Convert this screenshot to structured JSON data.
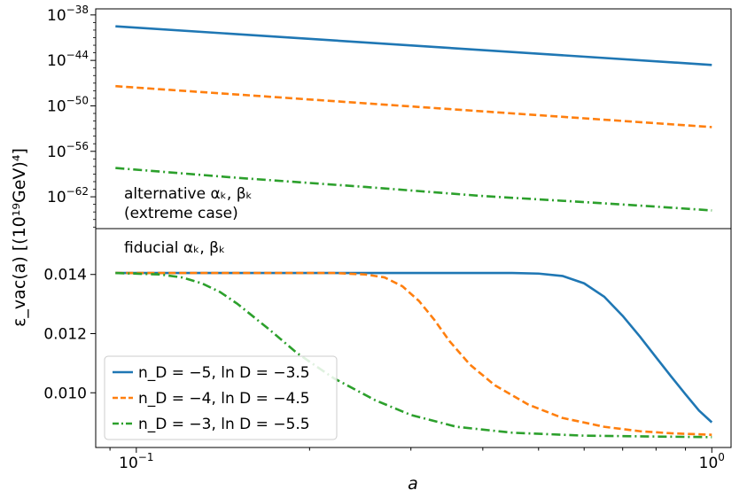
{
  "figure": {
    "ylabel": "ε_vac(a) [(10¹⁹GeV)⁴]",
    "xlabel": "a",
    "x_ticks": [
      {
        "value": 0.1,
        "base": "10",
        "exp": "−1"
      },
      {
        "value": 1.0,
        "base": "10",
        "exp": "0"
      }
    ]
  },
  "chart_data": [
    {
      "type": "line",
      "panel": "top",
      "annotation": [
        "alternative αₖ, βₖ",
        "(extreme case)"
      ],
      "xscale": "log",
      "yscale": "log",
      "xlim": [
        0.085,
        1.08
      ],
      "ylim_log10": [
        -66.2,
        -37.2
      ],
      "y_ticks": [
        {
          "log10": -38,
          "base": "10",
          "exp": "−38"
        },
        {
          "log10": -44,
          "base": "10",
          "exp": "−44"
        },
        {
          "log10": -50,
          "base": "10",
          "exp": "−50"
        },
        {
          "log10": -56,
          "base": "10",
          "exp": "−56"
        },
        {
          "log10": -62,
          "base": "10",
          "exp": "−62"
        }
      ],
      "series": [
        {
          "key": "s1",
          "color": "#1f77b4",
          "dash": "solid",
          "x": [
            0.092,
            1.0
          ],
          "log10_y": [
            -39.5,
            -44.6
          ]
        },
        {
          "key": "s2",
          "color": "#ff7f0e",
          "dash": "dashed",
          "x": [
            0.092,
            1.0
          ],
          "log10_y": [
            -47.4,
            -52.8
          ]
        },
        {
          "key": "s3",
          "color": "#2ca02c",
          "dash": "dashdot",
          "x": [
            0.092,
            0.15,
            0.25,
            0.4,
            0.6,
            0.8,
            1.0
          ],
          "log10_y": [
            -58.2,
            -59.5,
            -60.7,
            -61.9,
            -62.7,
            -63.3,
            -63.8
          ]
        }
      ]
    },
    {
      "type": "line",
      "panel": "bottom",
      "annotation": [
        "fiducial αₖ, βₖ"
      ],
      "xscale": "log",
      "yscale": "linear",
      "xlim": [
        0.085,
        1.08
      ],
      "ylim": [
        0.00815,
        0.01555
      ],
      "y_ticks": [
        "0.010",
        "0.012",
        "0.014"
      ],
      "legend": {
        "placement": "lower left",
        "entries": [
          {
            "key": "s1",
            "label": "n_D = −5,  ln D = −3.5"
          },
          {
            "key": "s2",
            "label": "n_D = −4,  ln D = −4.5"
          },
          {
            "key": "s3",
            "label": "n_D = −3,  ln D = −5.5"
          }
        ]
      },
      "series": [
        {
          "key": "s1",
          "color": "#1f77b4",
          "dash": "solid",
          "x": [
            0.092,
            0.3,
            0.45,
            0.5,
            0.55,
            0.6,
            0.65,
            0.7,
            0.75,
            0.8,
            0.85,
            0.9,
            0.95,
            1.0
          ],
          "y": [
            0.01405,
            0.01405,
            0.01405,
            0.01403,
            0.01395,
            0.0137,
            0.01325,
            0.0126,
            0.0119,
            0.0112,
            0.01055,
            0.00995,
            0.0094,
            0.009
          ]
        },
        {
          "key": "s2",
          "color": "#ff7f0e",
          "dash": "dashed",
          "x": [
            0.092,
            0.22,
            0.25,
            0.27,
            0.29,
            0.31,
            0.33,
            0.35,
            0.38,
            0.42,
            0.48,
            0.55,
            0.65,
            0.75,
            0.85,
            1.0
          ],
          "y": [
            0.01405,
            0.01405,
            0.014,
            0.0139,
            0.0136,
            0.0131,
            0.01245,
            0.01175,
            0.01095,
            0.01025,
            0.0096,
            0.00915,
            0.00885,
            0.0087,
            0.00863,
            0.00858
          ]
        },
        {
          "key": "s3",
          "color": "#2ca02c",
          "dash": "dashdot",
          "x": [
            0.092,
            0.11,
            0.12,
            0.13,
            0.14,
            0.15,
            0.17,
            0.19,
            0.22,
            0.26,
            0.3,
            0.36,
            0.45,
            0.6,
            0.8,
            1.0
          ],
          "y": [
            0.01405,
            0.014,
            0.0139,
            0.0137,
            0.0134,
            0.013,
            0.01215,
            0.01135,
            0.0105,
            0.00975,
            0.00925,
            0.00885,
            0.00865,
            0.00855,
            0.00852,
            0.0085
          ]
        }
      ]
    }
  ]
}
